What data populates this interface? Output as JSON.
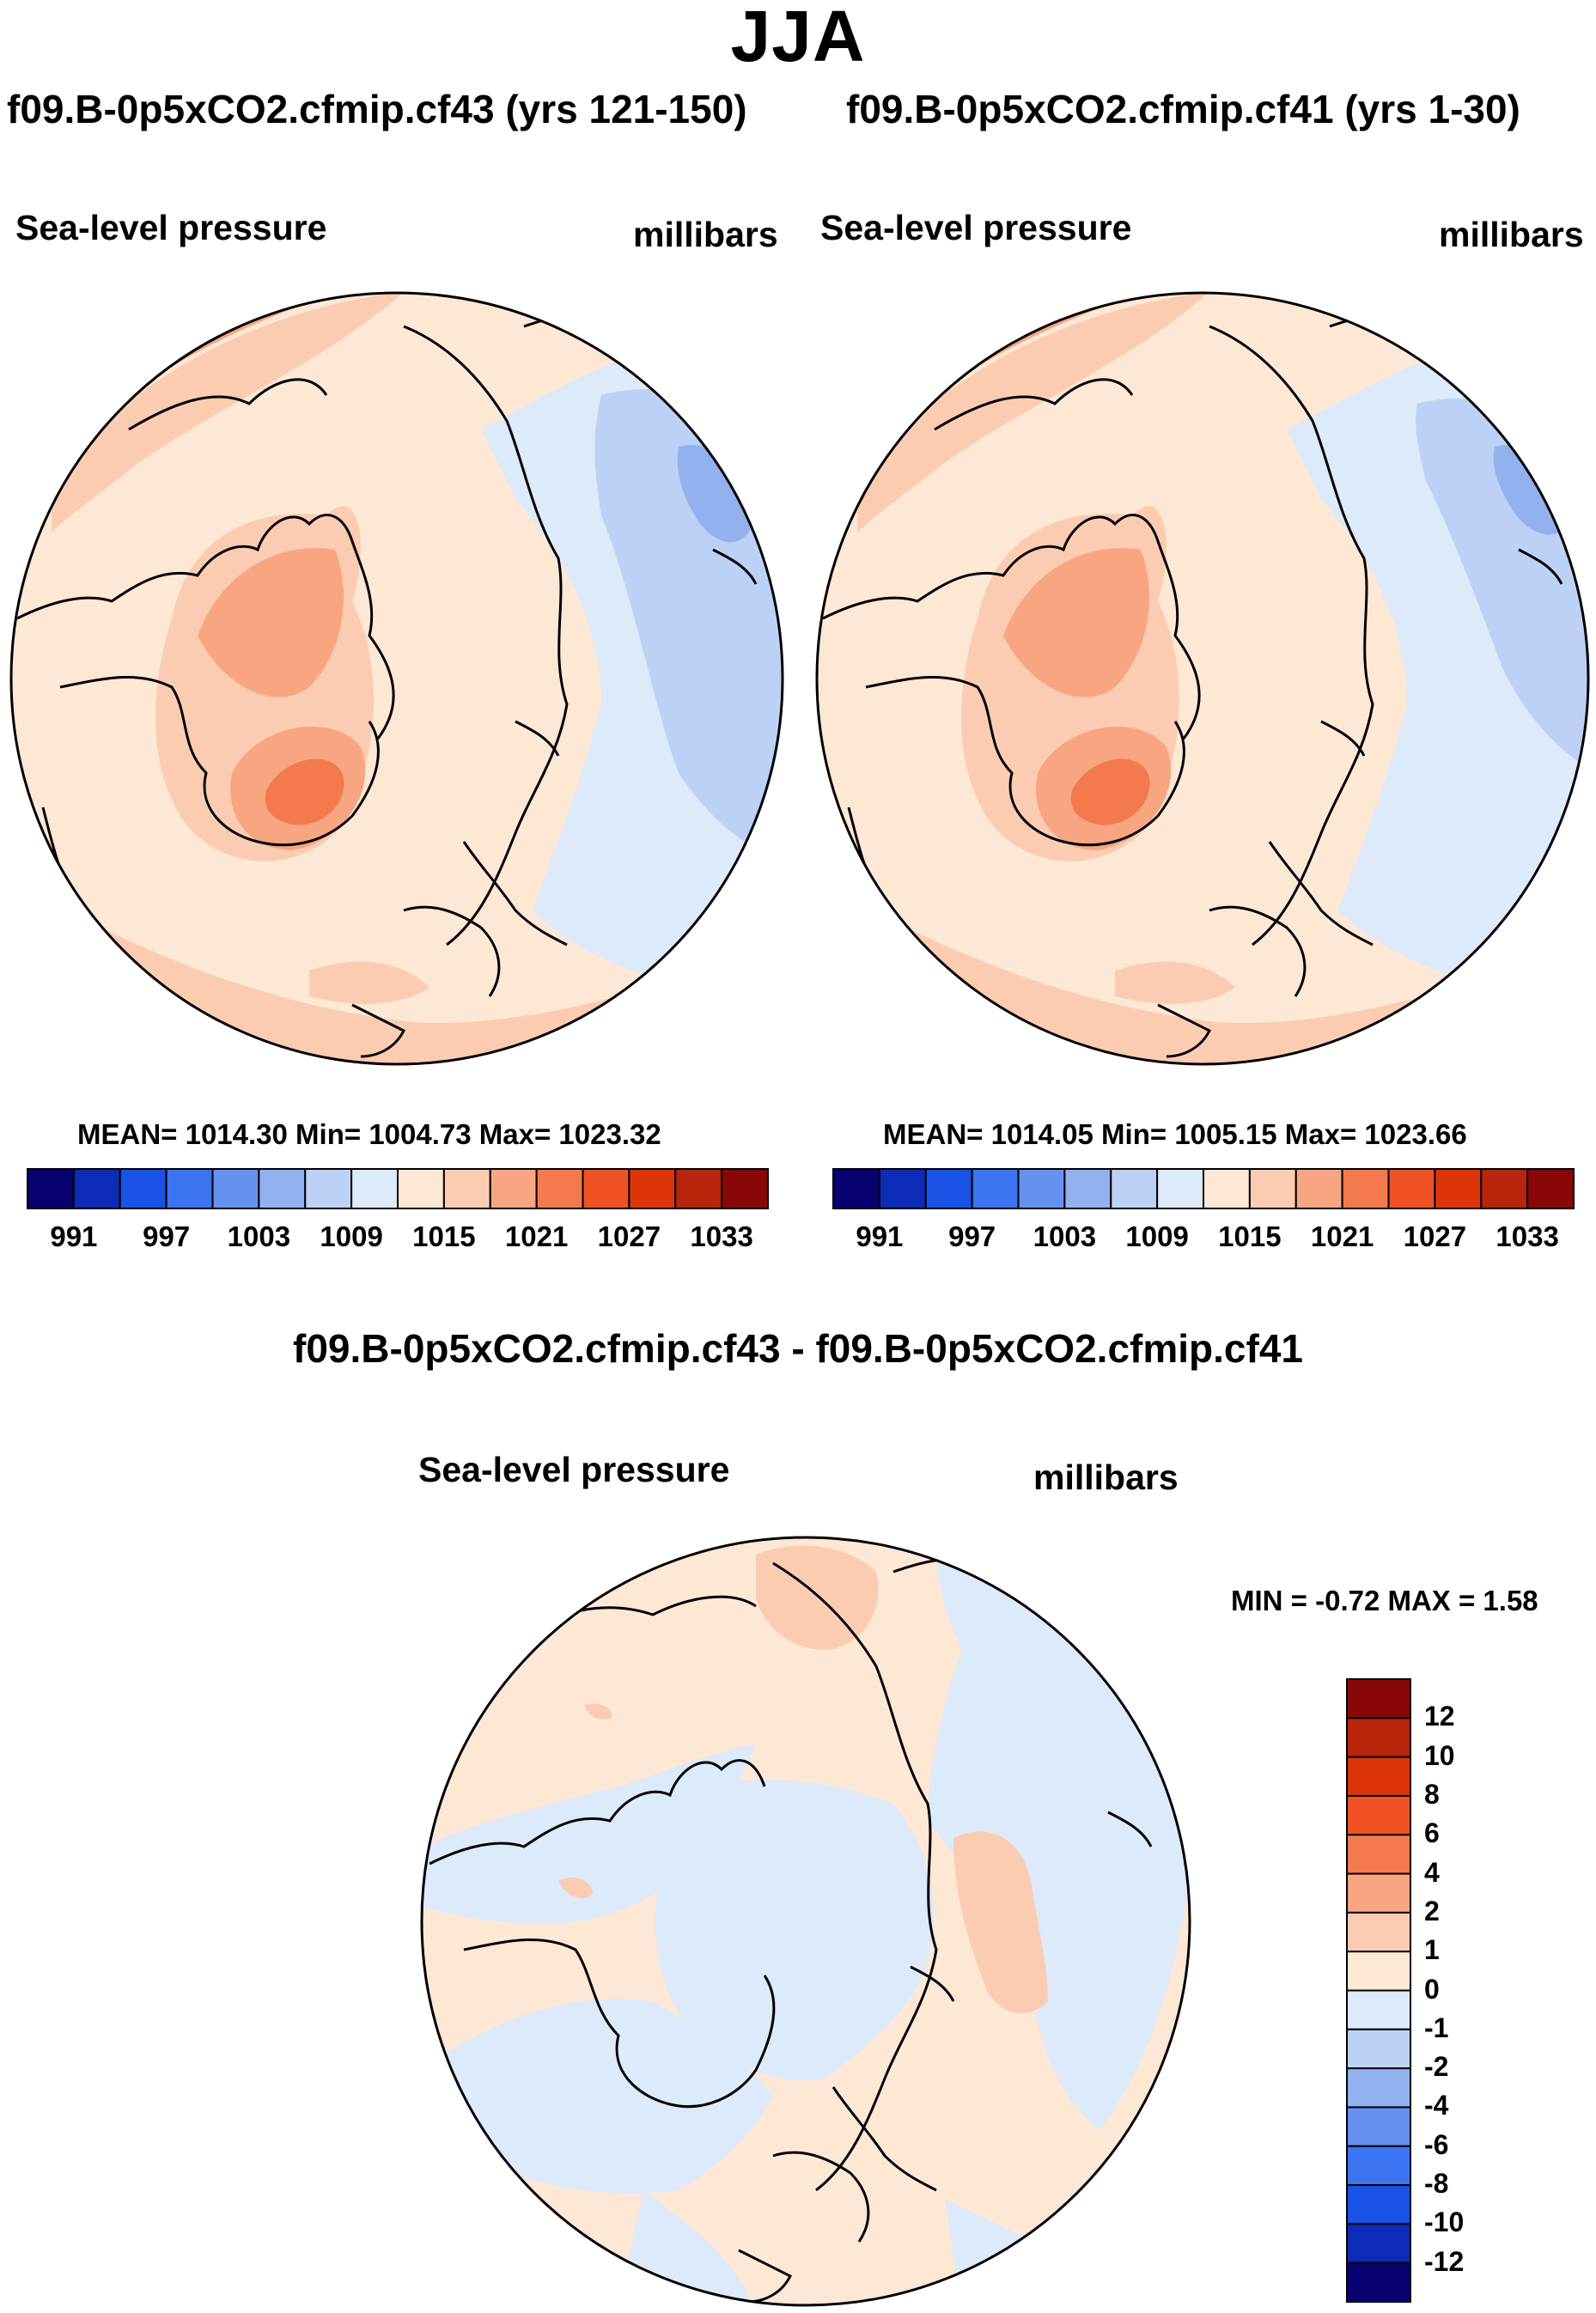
{
  "season": "JJA",
  "panels": [
    {
      "case_title": "f09.B-0p5xCO2.cfmip.cf43 (yrs 121-150)",
      "field": "Sea-level pressure",
      "units": "millibars",
      "stats": "MEAN= 1014.30  Min= 1004.73  Max= 1023.32",
      "mean": 1014.3,
      "min": 1004.73,
      "max": 1023.32
    },
    {
      "case_title": "f09.B-0p5xCO2.cfmip.cf41 (yrs 1-30)",
      "field": "Sea-level pressure",
      "units": "millibars",
      "stats": "MEAN= 1014.05  Min= 1005.15  Max= 1023.66",
      "mean": 1014.05,
      "min": 1005.15,
      "max": 1023.66
    }
  ],
  "colorbar": {
    "ticks": [
      "991",
      "997",
      "1003",
      "1009",
      "1015",
      "1021",
      "1027",
      "1033"
    ],
    "colors": [
      "#08006e",
      "#0c2cb8",
      "#1a52e6",
      "#3b75f2",
      "#6591f0",
      "#93b1ef",
      "#bcd1f5",
      "#dceafa",
      "#fde8d6",
      "#fcccb2",
      "#f7a681",
      "#f37a4e",
      "#ef5225",
      "#dd3509",
      "#b8250a",
      "#880808"
    ]
  },
  "diff": {
    "title": "f09.B-0p5xCO2.cfmip.cf43 - f09.B-0p5xCO2.cfmip.cf41",
    "field": "Sea-level pressure",
    "units": "millibars",
    "minmax": "MIN =   -0.72 MAX =   1.58",
    "min": -0.72,
    "max": 1.58,
    "legend_labels": [
      "12",
      "10",
      "8",
      "6",
      "4",
      "2",
      "1",
      "0",
      "-1",
      "-2",
      "-4",
      "-6",
      "-8",
      "-10",
      "-12"
    ],
    "legend_colors": [
      "#880808",
      "#b8250a",
      "#dd3509",
      "#ef5225",
      "#f37a4e",
      "#f7a681",
      "#fcccb2",
      "#fde8d6",
      "#dceafa",
      "#bcd1f5",
      "#93b1ef",
      "#6591f0",
      "#3b75f2",
      "#1a52e6",
      "#0c2cb8",
      "#08006e"
    ]
  },
  "fill_colors": {
    "light_orange": "#fde8d6",
    "orange": "#fcccb2",
    "mid_orange": "#f7a681",
    "dark_orange": "#f37a4e",
    "light_blue": "#dceafa",
    "blue": "#bcd1f5",
    "mid_blue": "#93b1ef",
    "coast": "#000000"
  }
}
